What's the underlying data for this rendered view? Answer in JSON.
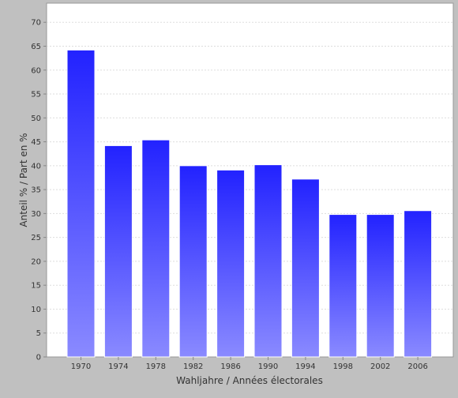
{
  "chart_data": {
    "type": "bar",
    "title": "",
    "xlabel": "Wahljahre / Années électorales",
    "ylabel": "Anteil % / Part en %",
    "categories": [
      "1970",
      "1974",
      "1978",
      "1982",
      "1986",
      "1990",
      "1994",
      "1998",
      "2002",
      "2006"
    ],
    "values": [
      64.2,
      44.2,
      45.4,
      40.0,
      39.1,
      40.2,
      37.2,
      29.8,
      29.8,
      30.6
    ],
    "ylim": [
      0,
      74
    ],
    "yticks": [
      0,
      5,
      10,
      15,
      20,
      25,
      30,
      35,
      40,
      45,
      50,
      55,
      60,
      65,
      70
    ],
    "grid": true,
    "legend": "none",
    "colors": {
      "bar_top": "#2222ff",
      "bar_bottom": "#8a8aff",
      "plot_background": "#ffffff",
      "page_background": "#c0c0c0",
      "gridline": "#dddddd"
    }
  }
}
